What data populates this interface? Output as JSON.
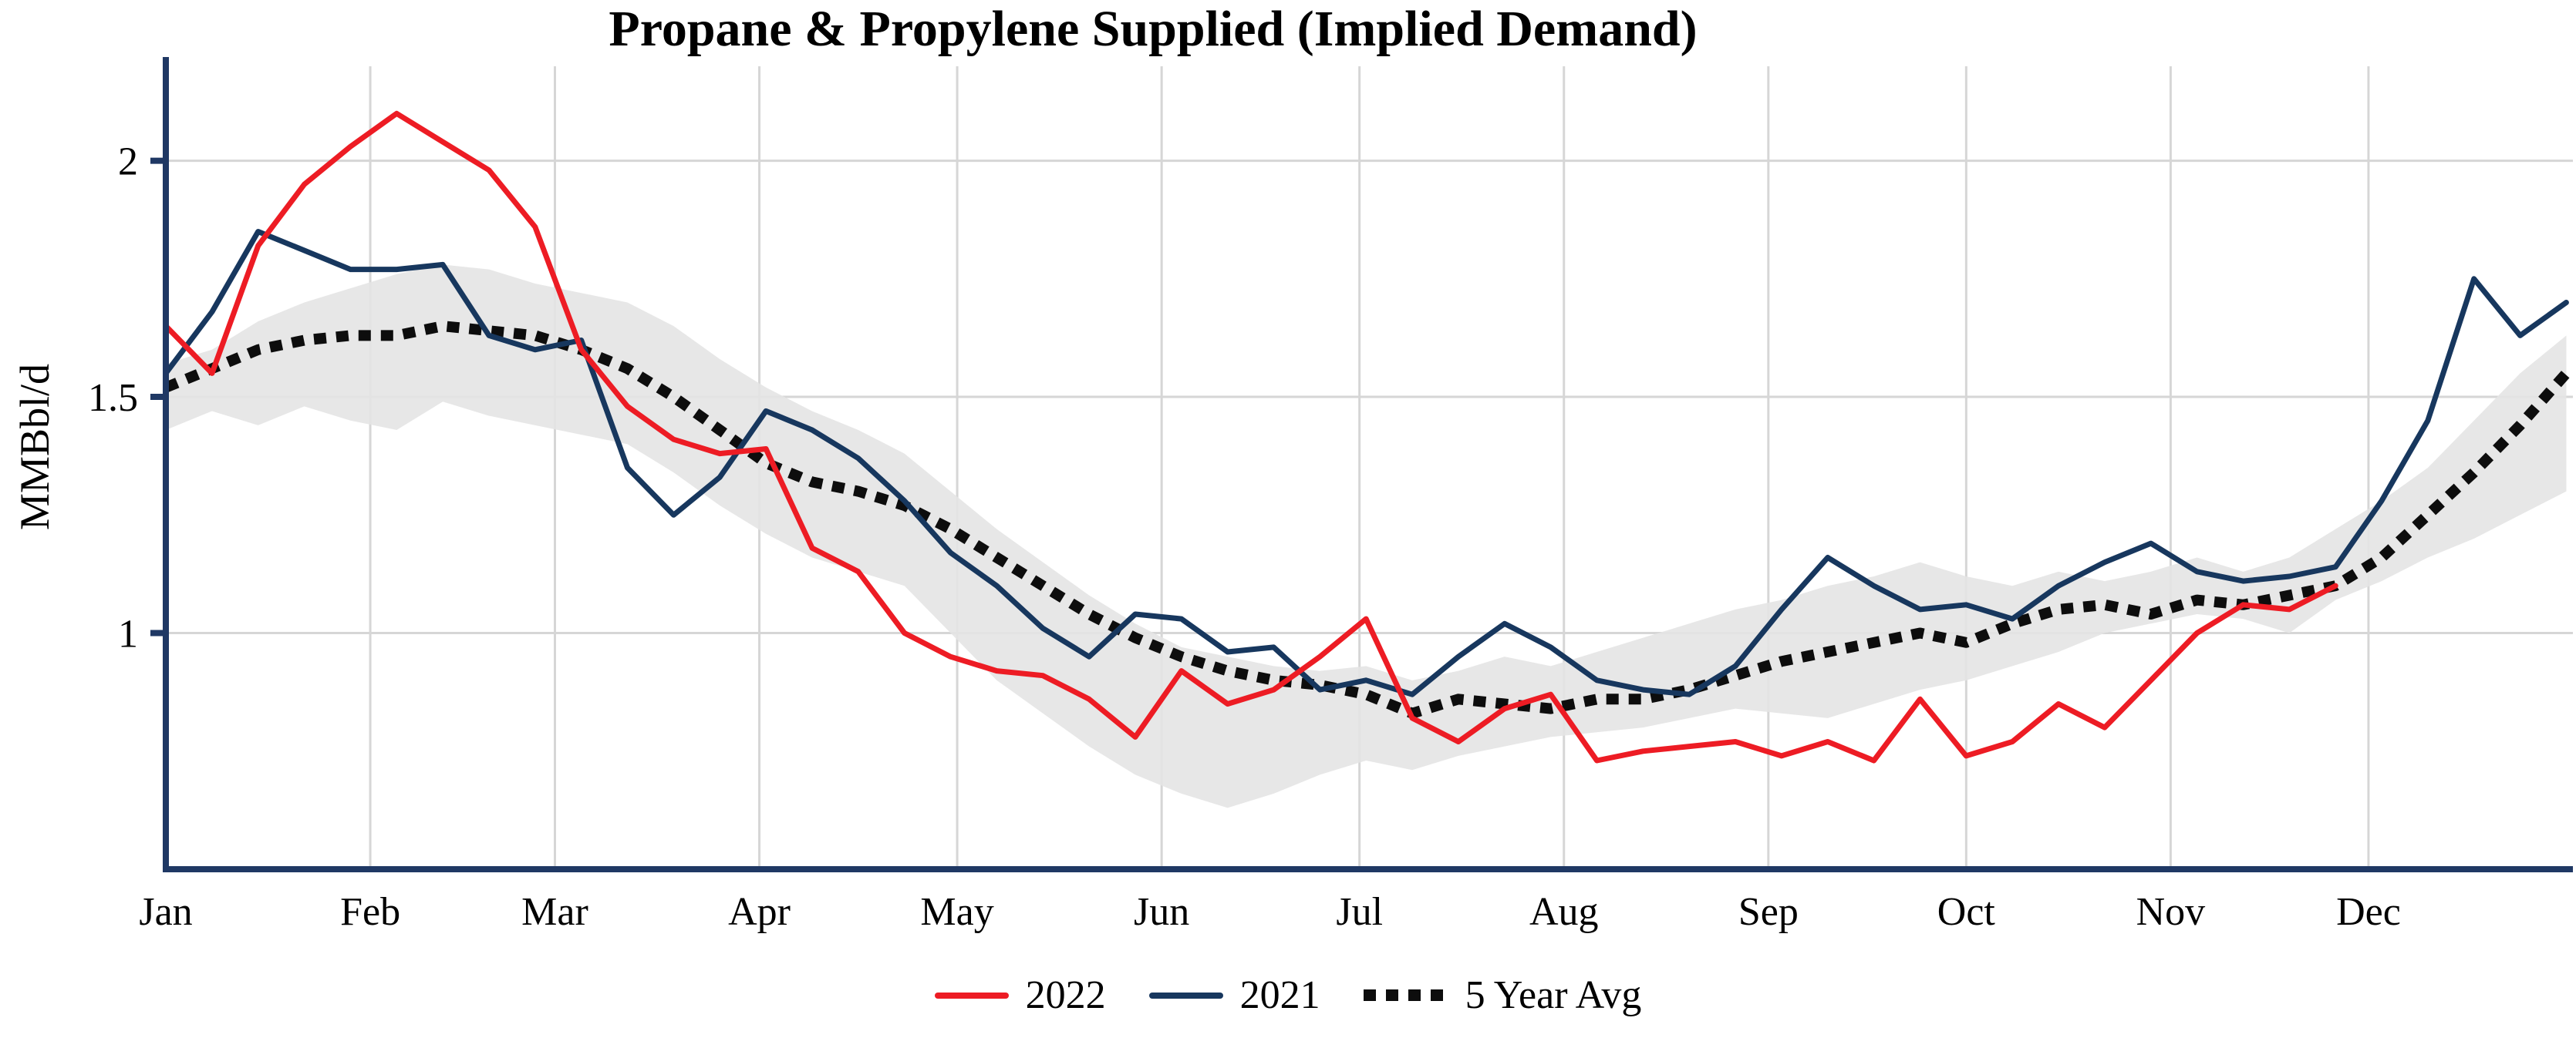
{
  "chart_data": {
    "type": "line",
    "title": "Propane & Propylene Supplied (Implied Demand)",
    "ylabel": "MMBbl/d",
    "x_axis": {
      "months": [
        "Jan",
        "Feb",
        "Mar",
        "Apr",
        "May",
        "Jun",
        "Jul",
        "Aug",
        "Sep",
        "Oct",
        "Nov",
        "Dec"
      ],
      "month_day_positions": [
        0,
        31,
        59,
        90,
        120,
        151,
        181,
        212,
        243,
        273,
        304,
        334
      ],
      "range_days": 365
    },
    "y_axis": {
      "ticks": [
        1,
        1.5,
        2
      ],
      "tick_labels": [
        "1",
        "1.5",
        "2"
      ],
      "ylim": [
        0.5,
        2.2
      ]
    },
    "grid": true,
    "legend_position": "bottom-center",
    "sample_interval_days": 7,
    "series": [
      {
        "name": "2022",
        "color": "#ed1c24",
        "style": "solid",
        "values": [
          1.65,
          1.55,
          1.82,
          1.95,
          2.03,
          2.1,
          2.04,
          1.98,
          1.86,
          1.6,
          1.48,
          1.41,
          1.38,
          1.39,
          1.18,
          1.13,
          1.0,
          0.95,
          0.92,
          0.91,
          0.86,
          0.78,
          0.92,
          0.85,
          0.88,
          0.95,
          1.03,
          0.82,
          0.77,
          0.84,
          0.87,
          0.73,
          0.75,
          0.76,
          0.77,
          0.74,
          0.77,
          0.73,
          0.86,
          0.74,
          0.77,
          0.85,
          0.8,
          0.9,
          1.0,
          1.06,
          1.05,
          1.1
        ]
      },
      {
        "name": "2021",
        "color": "#17375e",
        "style": "solid",
        "values": [
          1.55,
          1.68,
          1.85,
          1.81,
          1.77,
          1.77,
          1.78,
          1.63,
          1.6,
          1.62,
          1.35,
          1.25,
          1.33,
          1.47,
          1.43,
          1.37,
          1.28,
          1.17,
          1.1,
          1.01,
          0.95,
          1.04,
          1.03,
          0.96,
          0.97,
          0.88,
          0.9,
          0.87,
          0.95,
          1.02,
          0.97,
          0.9,
          0.88,
          0.87,
          0.93,
          1.05,
          1.16,
          1.1,
          1.05,
          1.06,
          1.03,
          1.1,
          1.15,
          1.19,
          1.13,
          1.11,
          1.12,
          1.14,
          1.28,
          1.45,
          1.75,
          1.63,
          1.7
        ]
      },
      {
        "name": "5 Year Avg",
        "color": "#0d0d0d",
        "style": "dotted",
        "values": [
          1.52,
          1.56,
          1.6,
          1.62,
          1.63,
          1.63,
          1.65,
          1.64,
          1.63,
          1.6,
          1.56,
          1.5,
          1.43,
          1.36,
          1.32,
          1.3,
          1.27,
          1.22,
          1.16,
          1.1,
          1.04,
          0.99,
          0.95,
          0.92,
          0.9,
          0.89,
          0.87,
          0.83,
          0.86,
          0.85,
          0.84,
          0.86,
          0.86,
          0.88,
          0.91,
          0.94,
          0.96,
          0.98,
          1.0,
          0.98,
          1.02,
          1.05,
          1.06,
          1.04,
          1.07,
          1.06,
          1.08,
          1.1,
          1.16,
          1.25,
          1.34,
          1.44,
          1.55
        ]
      }
    ],
    "band": {
      "name": "5-year range",
      "color": "#e4e4e4",
      "upper": [
        1.57,
        1.6,
        1.66,
        1.7,
        1.73,
        1.76,
        1.78,
        1.77,
        1.74,
        1.72,
        1.7,
        1.65,
        1.58,
        1.52,
        1.47,
        1.43,
        1.38,
        1.3,
        1.22,
        1.15,
        1.08,
        1.02,
        0.97,
        0.95,
        0.93,
        0.92,
        0.93,
        0.9,
        0.92,
        0.95,
        0.93,
        0.96,
        0.99,
        1.02,
        1.05,
        1.07,
        1.1,
        1.12,
        1.15,
        1.12,
        1.1,
        1.13,
        1.11,
        1.13,
        1.16,
        1.13,
        1.16,
        1.22,
        1.28,
        1.35,
        1.45,
        1.55,
        1.63
      ],
      "lower": [
        1.43,
        1.47,
        1.44,
        1.48,
        1.45,
        1.43,
        1.49,
        1.46,
        1.44,
        1.42,
        1.4,
        1.34,
        1.27,
        1.21,
        1.16,
        1.13,
        1.1,
        1.0,
        0.9,
        0.83,
        0.76,
        0.7,
        0.66,
        0.63,
        0.66,
        0.7,
        0.73,
        0.71,
        0.74,
        0.76,
        0.78,
        0.79,
        0.8,
        0.82,
        0.84,
        0.83,
        0.82,
        0.85,
        0.88,
        0.9,
        0.93,
        0.96,
        1.0,
        1.02,
        1.04,
        1.03,
        1.0,
        1.07,
        1.11,
        1.16,
        1.2,
        1.25,
        1.3
      ]
    },
    "colors": {
      "axis": "#1f3864",
      "grid": "#d6d6d6"
    },
    "legend": {
      "entries": [
        "2022",
        "2021",
        "5 Year Avg"
      ]
    }
  }
}
